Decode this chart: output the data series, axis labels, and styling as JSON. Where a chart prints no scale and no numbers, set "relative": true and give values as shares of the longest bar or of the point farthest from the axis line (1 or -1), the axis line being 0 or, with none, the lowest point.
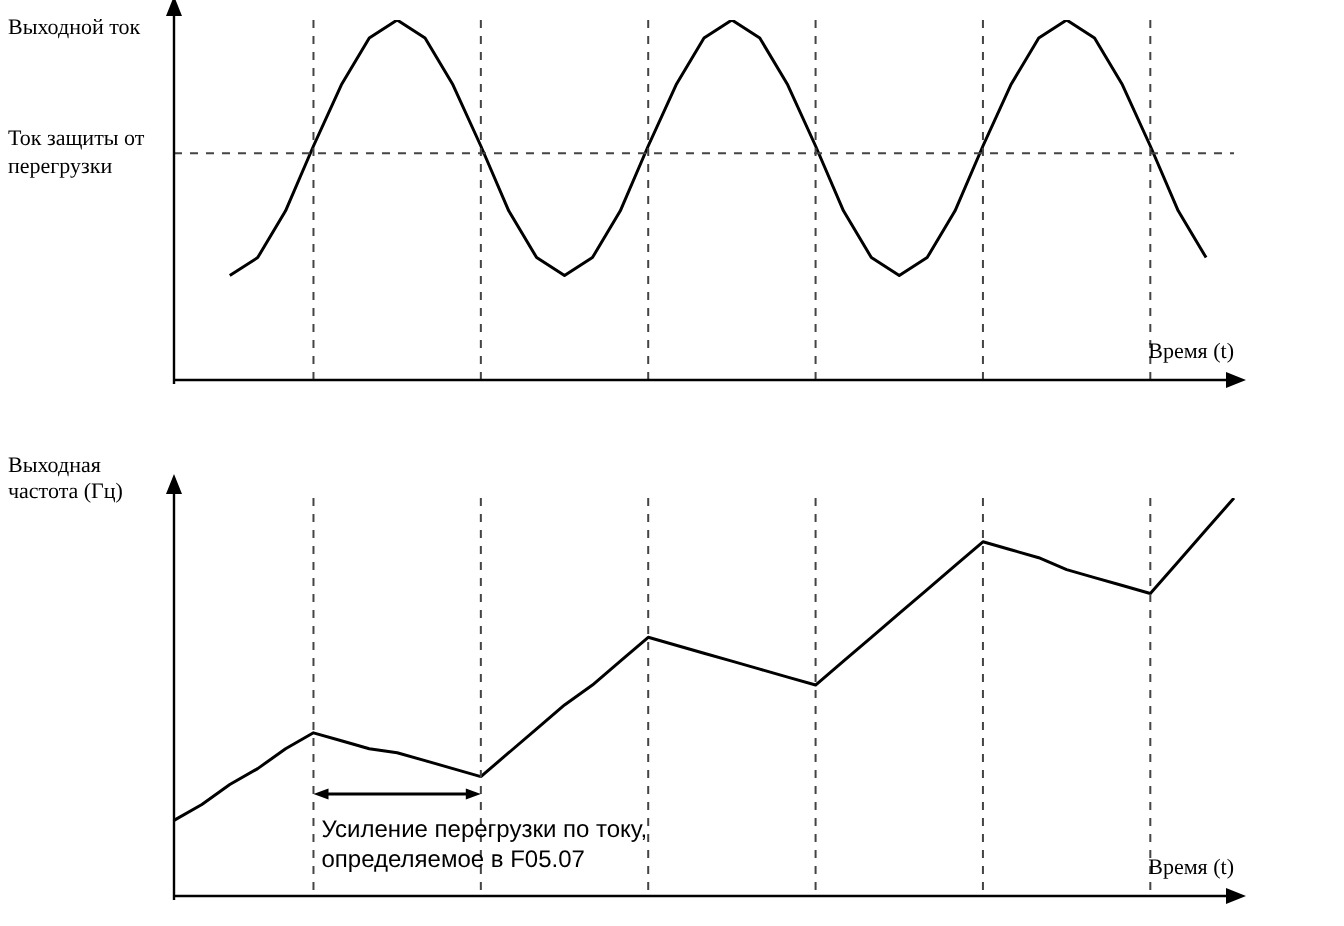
{
  "chart_data": [
    {
      "type": "line",
      "ylabel": "Выходной ток",
      "xlabel": "Время (t)",
      "relative": true,
      "tick_labels": false,
      "grid": "x",
      "categories": [
        null,
        null,
        null,
        null,
        null,
        null,
        null,
        null,
        null,
        null,
        null,
        null,
        null,
        null,
        null,
        null,
        null,
        null,
        null,
        null,
        null,
        null,
        null,
        null,
        null,
        null,
        null,
        null,
        null,
        null,
        null,
        null,
        null,
        null,
        null,
        null,
        null,
        null,
        null
      ],
      "series": [
        {
          "color": "#000000",
          "values": [
            null,
            null,
            0.29,
            0.34,
            0.47,
            0.65,
            0.82,
            0.95,
            1,
            0.95,
            0.82,
            0.65,
            0.47,
            0.34,
            0.29,
            0.34,
            0.47,
            0.65,
            0.82,
            0.95,
            1,
            0.95,
            0.82,
            0.65,
            0.47,
            0.34,
            0.29,
            0.34,
            0.47,
            0.65,
            0.82,
            0.95,
            1,
            0.95,
            0.82,
            0.65,
            0.47,
            0.34,
            null
          ]
        }
      ],
      "ref_lines": [
        {
          "axis": "y",
          "value": 0.63,
          "label": "Ток защиты от перегрузки",
          "color": "#444444",
          "line_style": "dashed"
        }
      ]
    },
    {
      "type": "line",
      "ylabel": "Выходная частота (Гц)",
      "xlabel": "Время (t)",
      "relative": true,
      "tick_labels": false,
      "grid": "x",
      "categories": [
        null,
        null,
        null,
        null,
        null,
        null,
        null,
        null,
        null,
        null,
        null,
        null,
        null,
        null,
        null,
        null,
        null,
        null,
        null,
        null,
        null,
        null,
        null,
        null,
        null,
        null,
        null,
        null,
        null,
        null,
        null,
        null,
        null,
        null,
        null,
        null,
        null,
        null,
        null
      ],
      "series": [
        {
          "color": "#000000",
          "values": [
            0.19,
            0.23,
            0.28,
            0.32,
            0.37,
            0.41,
            0.39,
            0.37,
            0.36,
            0.34,
            0.32,
            0.3,
            0.36,
            0.42,
            0.48,
            0.53,
            0.59,
            0.65,
            0.63,
            0.61,
            0.59,
            0.57,
            0.55,
            0.53,
            0.59,
            0.65,
            0.71,
            0.77,
            0.83,
            0.89,
            0.87,
            0.85,
            0.82,
            0.8,
            0.78,
            0.76,
            0.84,
            0.92,
            1.0
          ]
        }
      ],
      "annotations": [
        "Усиление перегрузки по току, определяемое в F05.07"
      ]
    }
  ]
}
